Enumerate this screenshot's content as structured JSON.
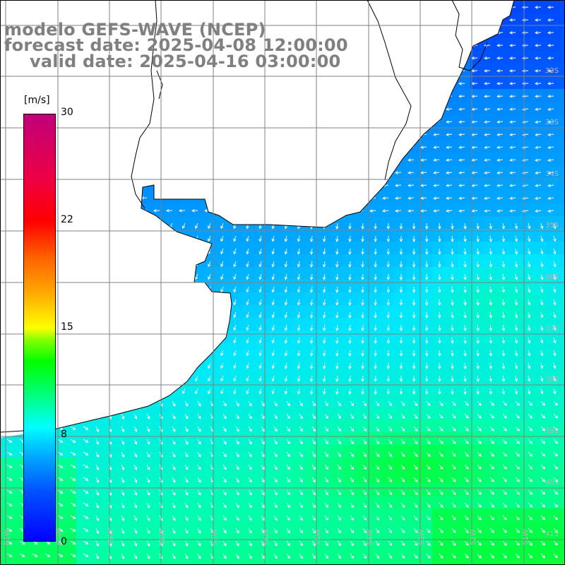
{
  "title": {
    "model": "modelo GEFS-WAVE (NCEP)",
    "forecast_date": "forecast date: 2025-04-08 12:00:00",
    "valid_date": "valid date: 2025-04-16 03:00:00"
  },
  "colorbar": {
    "unit": "[m/s]",
    "ticks": [
      {
        "label": "30",
        "value": 30
      },
      {
        "label": "22",
        "value": 22
      },
      {
        "label": "15",
        "value": 15
      },
      {
        "label": "8",
        "value": 8
      },
      {
        "label": "0",
        "value": 0
      }
    ],
    "range": [
      0,
      30
    ],
    "colors": [
      "#0000ff",
      "#00aaff",
      "#00ffff",
      "#00ff00",
      "#ffff00",
      "#ff6600",
      "#ff0000",
      "#c0007a"
    ]
  },
  "map": {
    "variable": "wind speed",
    "units": "m/s",
    "lat_labels": [
      "32S",
      "33S",
      "34S",
      "35S",
      "36S",
      "37S",
      "38S",
      "39S",
      "40S",
      "41S"
    ],
    "lon_labels": [
      "61W",
      "60W",
      "59W",
      "58W",
      "57W",
      "56W",
      "55W",
      "54W",
      "53W",
      "52W",
      "51W"
    ],
    "land_color": "#ffffff",
    "grid_color": "#808080",
    "coast_color": "#000000",
    "arrow_color": "#ffffff"
  }
}
